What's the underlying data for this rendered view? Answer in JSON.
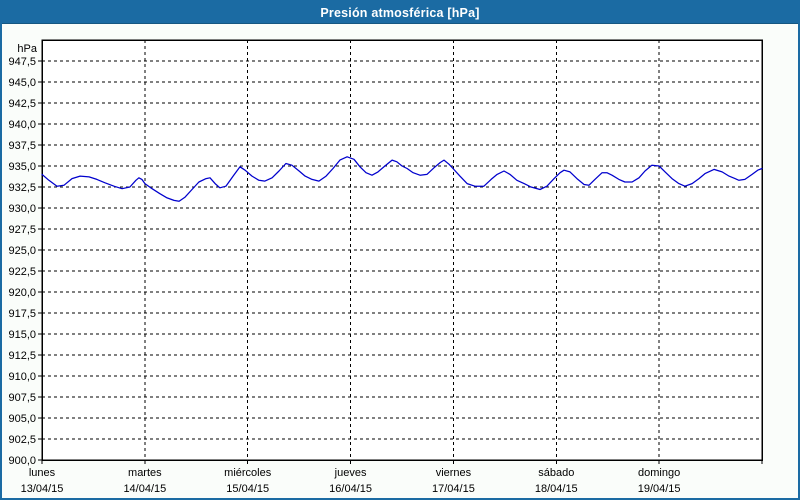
{
  "window": {
    "title": "Presión atmosférica [hPa]"
  },
  "colors": {
    "titlebar": "#1b6ba3",
    "titlebar_text": "#ffffff",
    "window_border": "#1b6ba3",
    "background": "#fafdfa",
    "plot_background": "#ffffff",
    "grid": "#000000",
    "axis": "#000000",
    "line": "#0000cd",
    "label": "#000000"
  },
  "chart_data": {
    "type": "line",
    "title": "Presión atmosférica [hPa]",
    "unit_label": "hPa",
    "ylim": [
      900,
      950
    ],
    "ytick_step": 2.5,
    "grid": true,
    "legend": "none",
    "yticks": [
      {
        "v": 947.5,
        "label": "947,5"
      },
      {
        "v": 945.0,
        "label": "945,0"
      },
      {
        "v": 942.5,
        "label": "942,5"
      },
      {
        "v": 940.0,
        "label": "940,0"
      },
      {
        "v": 937.5,
        "label": "937,5"
      },
      {
        "v": 935.0,
        "label": "935,0"
      },
      {
        "v": 932.5,
        "label": "932,5"
      },
      {
        "v": 930.0,
        "label": "930,0"
      },
      {
        "v": 927.5,
        "label": "927,5"
      },
      {
        "v": 925.0,
        "label": "925,0"
      },
      {
        "v": 922.5,
        "label": "922,5"
      },
      {
        "v": 920.0,
        "label": "920,0"
      },
      {
        "v": 917.5,
        "label": "917,5"
      },
      {
        "v": 915.0,
        "label": "915,0"
      },
      {
        "v": 912.5,
        "label": "912,5"
      },
      {
        "v": 910.0,
        "label": "910,0"
      },
      {
        "v": 907.5,
        "label": "907,5"
      },
      {
        "v": 905.0,
        "label": "905,0"
      },
      {
        "v": 902.5,
        "label": "902,5"
      },
      {
        "v": 900.0,
        "label": "900,0"
      }
    ],
    "x_hours": [
      0,
      168
    ],
    "x_day_span_hours": 24,
    "days": [
      {
        "name": "lunes",
        "date": "13/04/15"
      },
      {
        "name": "martes",
        "date": "14/04/15"
      },
      {
        "name": "miércoles",
        "date": "15/04/15"
      },
      {
        "name": "jueves",
        "date": "16/04/15"
      },
      {
        "name": "viernes",
        "date": "17/04/15"
      },
      {
        "name": "sábado",
        "date": "18/04/15"
      },
      {
        "name": "domingo",
        "date": "19/04/15"
      }
    ],
    "series": [
      {
        "name": "Presión atmosférica",
        "color": "#0000cd",
        "points": [
          [
            0,
            934.0
          ],
          [
            1.6,
            933.3
          ],
          [
            3.5,
            932.6
          ],
          [
            5.1,
            932.7
          ],
          [
            7,
            933.5
          ],
          [
            8.9,
            933.8
          ],
          [
            11,
            933.7
          ],
          [
            12.8,
            933.4
          ],
          [
            14.7,
            933.0
          ],
          [
            16.8,
            932.6
          ],
          [
            18.7,
            932.3
          ],
          [
            20.5,
            932.5
          ],
          [
            21.9,
            933.3
          ],
          [
            22.6,
            933.6
          ],
          [
            23.3,
            933.4
          ],
          [
            24,
            932.9
          ],
          [
            25.7,
            932.3
          ],
          [
            27.5,
            931.7
          ],
          [
            29.2,
            931.2
          ],
          [
            30.8,
            930.9
          ],
          [
            32,
            930.8
          ],
          [
            33.4,
            931.3
          ],
          [
            35,
            932.2
          ],
          [
            36.6,
            933.1
          ],
          [
            38.3,
            933.5
          ],
          [
            39.2,
            933.6
          ],
          [
            40.4,
            932.9
          ],
          [
            41.5,
            932.4
          ],
          [
            42.9,
            932.6
          ],
          [
            44.6,
            933.8
          ],
          [
            46.2,
            934.9
          ],
          [
            47.4,
            934.5
          ],
          [
            49,
            933.8
          ],
          [
            50.6,
            933.3
          ],
          [
            52,
            933.2
          ],
          [
            53.7,
            933.6
          ],
          [
            55.3,
            934.4
          ],
          [
            56.9,
            935.3
          ],
          [
            58.3,
            935.1
          ],
          [
            60,
            934.4
          ],
          [
            61.4,
            933.8
          ],
          [
            63,
            933.4
          ],
          [
            64.6,
            933.2
          ],
          [
            66.3,
            933.8
          ],
          [
            67.9,
            934.7
          ],
          [
            69.5,
            935.7
          ],
          [
            71.2,
            936.1
          ],
          [
            72.8,
            935.8
          ],
          [
            74.2,
            934.9
          ],
          [
            75.6,
            934.2
          ],
          [
            77,
            933.9
          ],
          [
            78.4,
            934.3
          ],
          [
            80,
            935.0
          ],
          [
            81.7,
            935.7
          ],
          [
            82.8,
            935.5
          ],
          [
            84,
            935.0
          ],
          [
            85.2,
            934.7
          ],
          [
            86.6,
            934.2
          ],
          [
            88.2,
            933.9
          ],
          [
            89.8,
            934.0
          ],
          [
            91.5,
            934.8
          ],
          [
            92.9,
            935.4
          ],
          [
            93.8,
            935.7
          ],
          [
            95,
            935.2
          ],
          [
            95.9,
            934.7
          ],
          [
            97.5,
            933.8
          ],
          [
            99.2,
            932.9
          ],
          [
            101,
            932.6
          ],
          [
            103.1,
            932.6
          ],
          [
            104.8,
            933.4
          ],
          [
            106.2,
            934.0
          ],
          [
            107.8,
            934.4
          ],
          [
            109.2,
            934.0
          ],
          [
            110.8,
            933.3
          ],
          [
            112.5,
            932.9
          ],
          [
            114.1,
            932.5
          ],
          [
            116.2,
            932.2
          ],
          [
            117.8,
            932.6
          ],
          [
            119.5,
            933.5
          ],
          [
            120.9,
            934.2
          ],
          [
            121.8,
            934.5
          ],
          [
            123.2,
            934.3
          ],
          [
            124.8,
            933.5
          ],
          [
            126.5,
            932.8
          ],
          [
            127.6,
            932.7
          ],
          [
            129,
            933.4
          ],
          [
            130.7,
            934.2
          ],
          [
            131.8,
            934.2
          ],
          [
            133,
            933.9
          ],
          [
            134.6,
            933.4
          ],
          [
            136,
            933.1
          ],
          [
            137.7,
            933.1
          ],
          [
            139.3,
            933.6
          ],
          [
            140.7,
            934.4
          ],
          [
            142.3,
            935.1
          ],
          [
            144,
            935.0
          ],
          [
            145.4,
            934.3
          ],
          [
            147,
            933.5
          ],
          [
            148.6,
            932.9
          ],
          [
            150,
            932.6
          ],
          [
            151.7,
            932.9
          ],
          [
            153.3,
            933.5
          ],
          [
            154.7,
            934.1
          ],
          [
            156.8,
            934.6
          ],
          [
            158.7,
            934.3
          ],
          [
            160.3,
            933.8
          ],
          [
            161.7,
            933.5
          ],
          [
            162.6,
            933.3
          ],
          [
            164,
            933.4
          ],
          [
            165.7,
            934.0
          ],
          [
            167,
            934.5
          ],
          [
            168,
            934.7
          ]
        ]
      }
    ]
  }
}
